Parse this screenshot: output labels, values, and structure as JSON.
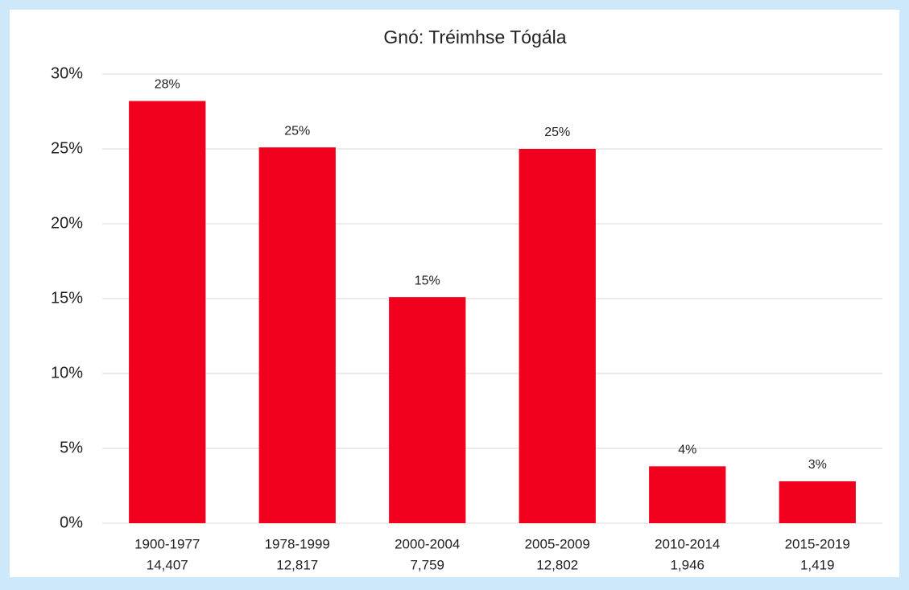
{
  "chart_data": {
    "type": "bar",
    "title": "Gnó: Tréimhse Tógála",
    "categories": [
      "1900-1977",
      "1978-1999",
      "2000-2004",
      "2005-2009",
      "2010-2014",
      "2015-2019"
    ],
    "category_counts": [
      "14,407",
      "12,817",
      "7,759",
      "12,802",
      "1,946",
      "1,419"
    ],
    "values": [
      28.2,
      25.1,
      15.1,
      25.0,
      3.8,
      2.8
    ],
    "value_labels": [
      "28%",
      "25%",
      "15%",
      "25%",
      "4%",
      "3%"
    ],
    "color": "#f0001c",
    "ylim": [
      0,
      30
    ],
    "yticks": [
      {
        "value": 0,
        "label": "0%"
      },
      {
        "value": 5,
        "label": "5%"
      },
      {
        "value": 10,
        "label": "10%"
      },
      {
        "value": 15,
        "label": "15%"
      },
      {
        "value": 20,
        "label": "20%"
      },
      {
        "value": 25,
        "label": "25%"
      },
      {
        "value": 30,
        "label": "30%"
      }
    ],
    "grid": true
  }
}
